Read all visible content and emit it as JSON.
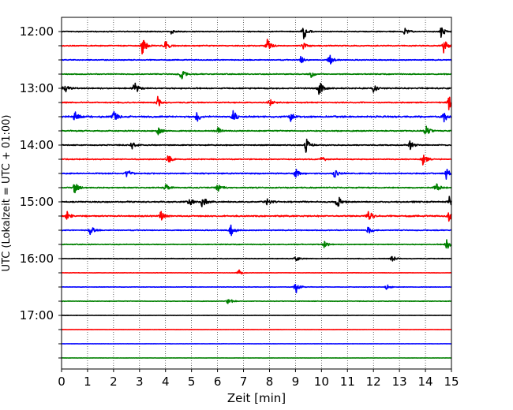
{
  "chart_data": {
    "type": "line",
    "title": "",
    "xlabel": "Zeit  [min]",
    "ylabel": "UTC (Lokalzeit = UTC + 01:00)",
    "xlim": [
      0,
      15
    ],
    "x_ticks": [
      0,
      1,
      2,
      3,
      4,
      5,
      6,
      7,
      8,
      9,
      10,
      11,
      12,
      13,
      14,
      15
    ],
    "x_tick_labels": [
      "0",
      "1",
      "2",
      "3",
      "4",
      "5",
      "6",
      "7",
      "8",
      "9",
      "10",
      "11",
      "12",
      "13",
      "14",
      "15"
    ],
    "y_tick_labels": [
      "12:00",
      "13:00",
      "14:00",
      "15:00",
      "16:00",
      "17:00"
    ],
    "grid": "vertical dotted",
    "colors": [
      "#000000",
      "#ff0000",
      "#0000ff",
      "#008000"
    ],
    "series": [
      {
        "start": "12:00",
        "color": "#000000",
        "noise": 0.2,
        "events": [
          [
            9.3,
            1.0
          ],
          [
            14.6,
            0.6
          ],
          [
            13.2,
            0.4
          ],
          [
            4.2,
            0.3
          ]
        ]
      },
      {
        "start": "12:15",
        "color": "#ff0000",
        "noise": 0.22,
        "events": [
          [
            3.1,
            1.0
          ],
          [
            7.9,
            0.8
          ],
          [
            4.0,
            0.6
          ],
          [
            14.7,
            0.8
          ],
          [
            9.3,
            0.5
          ]
        ]
      },
      {
        "start": "12:30",
        "color": "#0000ff",
        "noise": 0.2,
        "events": [
          [
            10.3,
            0.7
          ],
          [
            9.2,
            0.4
          ]
        ]
      },
      {
        "start": "12:45",
        "color": "#008000",
        "noise": 0.22,
        "events": [
          [
            4.6,
            0.7
          ],
          [
            9.6,
            0.4
          ]
        ]
      },
      {
        "start": "13:00",
        "color": "#000000",
        "noise": 0.28,
        "events": [
          [
            2.8,
            0.9
          ],
          [
            9.9,
            0.9
          ],
          [
            0.1,
            0.6
          ],
          [
            12.0,
            0.4
          ]
        ]
      },
      {
        "start": "13:15",
        "color": "#ff0000",
        "noise": 0.24,
        "events": [
          [
            3.7,
            0.6
          ],
          [
            14.9,
            0.9
          ],
          [
            8.0,
            0.4
          ]
        ]
      },
      {
        "start": "13:30",
        "color": "#0000ff",
        "noise": 0.35,
        "events": [
          [
            0.5,
            0.6
          ],
          [
            2.0,
            0.6
          ],
          [
            5.2,
            0.6
          ],
          [
            6.6,
            0.7
          ],
          [
            8.8,
            0.6
          ],
          [
            14.7,
            0.6
          ]
        ]
      },
      {
        "start": "13:45",
        "color": "#008000",
        "noise": 0.25,
        "events": [
          [
            3.7,
            0.5
          ],
          [
            14.0,
            0.7
          ],
          [
            6.0,
            0.4
          ]
        ]
      },
      {
        "start": "14:00",
        "color": "#000000",
        "noise": 0.22,
        "events": [
          [
            9.4,
            0.9
          ],
          [
            2.7,
            0.5
          ],
          [
            13.4,
            0.5
          ]
        ]
      },
      {
        "start": "14:15",
        "color": "#ff0000",
        "noise": 0.22,
        "events": [
          [
            4.1,
            0.6
          ],
          [
            13.9,
            0.7
          ],
          [
            10.0,
            0.3
          ]
        ]
      },
      {
        "start": "14:30",
        "color": "#0000ff",
        "noise": 0.25,
        "events": [
          [
            2.5,
            0.7
          ],
          [
            9.0,
            0.5
          ],
          [
            10.5,
            0.5
          ],
          [
            14.8,
            0.6
          ]
        ]
      },
      {
        "start": "14:45",
        "color": "#008000",
        "noise": 0.25,
        "events": [
          [
            0.5,
            0.7
          ],
          [
            6.0,
            0.6
          ],
          [
            14.4,
            0.7
          ],
          [
            4.0,
            0.4
          ]
        ]
      },
      {
        "start": "15:00",
        "color": "#000000",
        "noise": 0.28,
        "events": [
          [
            10.6,
            1.0
          ],
          [
            5.4,
            0.8
          ],
          [
            4.9,
            0.5
          ],
          [
            14.9,
            0.6
          ],
          [
            7.9,
            0.4
          ]
        ]
      },
      {
        "start": "15:15",
        "color": "#ff0000",
        "noise": 0.3,
        "events": [
          [
            3.8,
            0.6
          ],
          [
            11.8,
            0.7
          ],
          [
            14.9,
            0.6
          ],
          [
            0.2,
            0.5
          ]
        ]
      },
      {
        "start": "15:30",
        "color": "#0000ff",
        "noise": 0.2,
        "events": [
          [
            6.5,
            0.7
          ],
          [
            1.1,
            0.6
          ],
          [
            11.8,
            0.5
          ]
        ]
      },
      {
        "start": "15:45",
        "color": "#008000",
        "noise": 0.18,
        "events": [
          [
            14.8,
            0.7
          ],
          [
            10.1,
            0.4
          ]
        ]
      },
      {
        "start": "16:00",
        "color": "#000000",
        "noise": 0.14,
        "events": [
          [
            12.7,
            0.4
          ],
          [
            9.0,
            0.3
          ]
        ]
      },
      {
        "start": "16:15",
        "color": "#ff0000",
        "noise": 0.08,
        "events": [
          [
            6.8,
            0.4
          ]
        ]
      },
      {
        "start": "16:30",
        "color": "#0000ff",
        "noise": 0.1,
        "events": [
          [
            9.0,
            0.8
          ],
          [
            12.5,
            0.3
          ]
        ]
      },
      {
        "start": "16:45",
        "color": "#008000",
        "noise": 0.12,
        "events": [
          [
            6.4,
            0.5
          ]
        ]
      },
      {
        "start": "17:00",
        "color": "#000000",
        "noise": 0.06,
        "events": []
      },
      {
        "start": "17:15",
        "color": "#ff0000",
        "noise": 0.05,
        "events": []
      },
      {
        "start": "17:30",
        "color": "#0000ff",
        "noise": 0.05,
        "events": []
      },
      {
        "start": "17:45",
        "color": "#008000",
        "noise": 0.05,
        "events": []
      }
    ]
  }
}
